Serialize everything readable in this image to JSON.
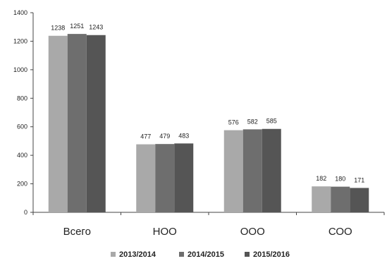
{
  "chart_data": {
    "type": "bar",
    "categories": [
      "Всего",
      "НОО",
      "ООО",
      "СОО"
    ],
    "series": [
      {
        "name": "2013/2014",
        "values": [
          1238,
          477,
          576,
          182
        ],
        "color": "#a9a9a9"
      },
      {
        "name": "2014/2015",
        "values": [
          1251,
          479,
          582,
          180
        ],
        "color": "#6e6e6e"
      },
      {
        "name": "2015/2016",
        "values": [
          1243,
          483,
          585,
          171
        ],
        "color": "#555555"
      }
    ],
    "y_ticks": [
      "0",
      "200",
      "400",
      "600",
      "800",
      "1000",
      "1200",
      "1400"
    ],
    "ylim": [
      0,
      1400
    ],
    "grid": false,
    "legend_position": "bottom",
    "title": "",
    "xlabel": "",
    "ylabel": ""
  }
}
